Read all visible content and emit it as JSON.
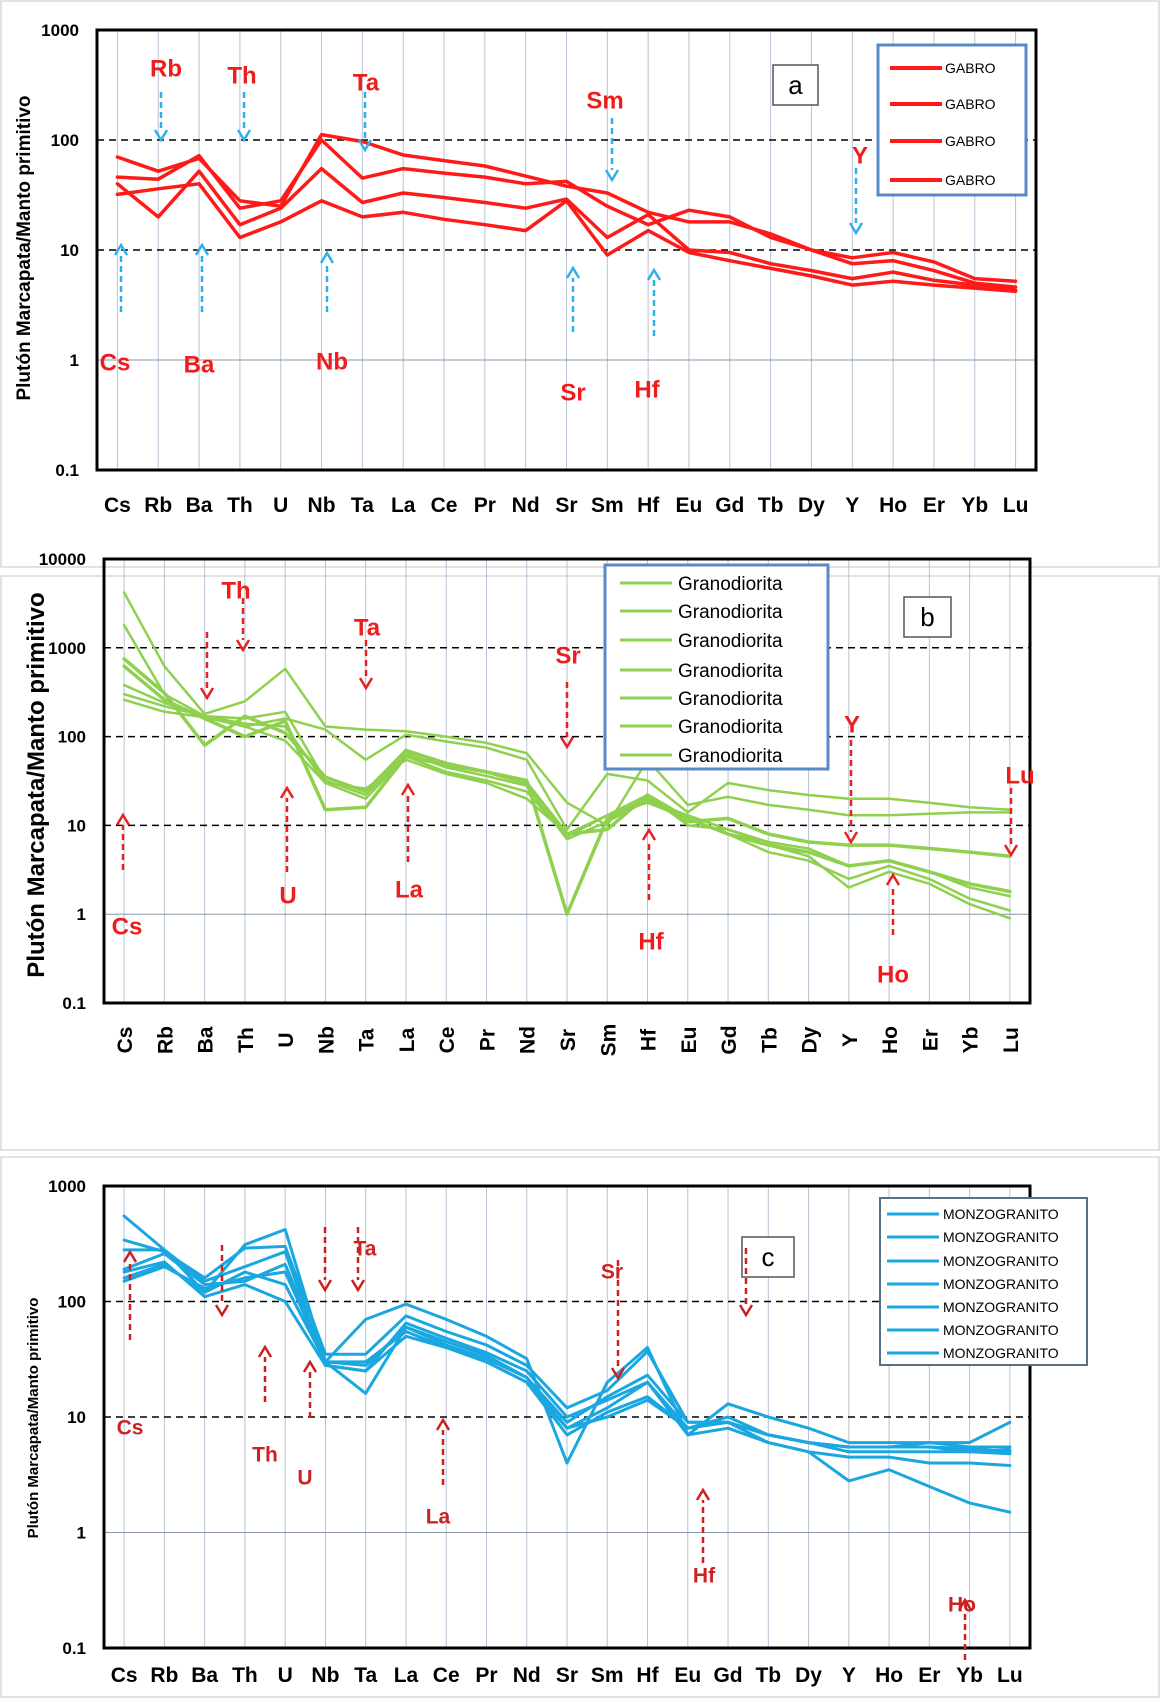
{
  "chart_data": [
    {
      "type": "line",
      "panel_letter": "a",
      "ylabel": "Plutón Marcapata/Manto primitivo",
      "y_scale": "log",
      "ylim": [
        0.1,
        1000
      ],
      "yticks": [
        "0.1",
        "1",
        "10",
        "100",
        "1000"
      ],
      "grid": {
        "solid": [
          1
        ],
        "dashed": [
          10,
          100
        ]
      },
      "categories": [
        "Cs",
        "Rb",
        "Ba",
        "Th",
        "U",
        "Nb",
        "Ta",
        "La",
        "Ce",
        "Pr",
        "Nd",
        "Sr",
        "Sm",
        "Hf",
        "Eu",
        "Gd",
        "Tb",
        "Dy",
        "Y",
        "Ho",
        "Er",
        "Yb",
        "Lu"
      ],
      "legend_position": "top-right",
      "line_color": "#ff1a1a",
      "arrow_color": "#2fb0ea",
      "label_color": "#ee1c1c",
      "series": [
        {
          "name": "GABRO",
          "values": [
            70,
            52,
            68,
            28,
            25,
            112,
            97,
            73,
            65,
            58,
            47,
            38,
            33,
            22,
            18,
            18,
            14,
            10,
            8.5,
            9.5,
            7.8,
            5.5,
            5.2
          ]
        },
        {
          "name": "GABRO",
          "values": [
            46,
            44,
            72,
            24,
            28,
            100,
            45,
            55,
            50,
            46,
            40,
            42,
            25,
            17,
            23,
            20,
            13,
            10,
            7.5,
            8,
            6.5,
            5,
            4.6
          ]
        },
        {
          "name": "GABRO",
          "values": [
            40,
            20,
            52,
            17,
            24,
            55,
            27,
            33,
            30,
            27,
            24,
            29,
            13,
            21,
            10,
            9.5,
            7.5,
            6.5,
            5.5,
            6.3,
            5.3,
            4.8,
            4.3
          ]
        },
        {
          "name": "GABRO",
          "values": [
            32,
            36,
            40,
            13,
            18,
            28,
            20,
            22,
            19,
            17,
            15,
            28,
            9,
            15,
            9.5,
            8,
            6.8,
            5.8,
            4.8,
            5.2,
            4.8,
            4.5,
            4.2
          ]
        }
      ],
      "annotations": [
        {
          "label": "Rb",
          "direction": "down"
        },
        {
          "label": "Th",
          "direction": "down"
        },
        {
          "label": "Ta",
          "direction": "down"
        },
        {
          "label": "Sm",
          "direction": "down"
        },
        {
          "label": "Y",
          "direction": "down"
        },
        {
          "label": "Cs",
          "direction": "up"
        },
        {
          "label": "Ba",
          "direction": "up"
        },
        {
          "label": "Nb",
          "direction": "up"
        },
        {
          "label": "Sr",
          "direction": "up"
        },
        {
          "label": "Hf",
          "direction": "up"
        }
      ]
    },
    {
      "type": "line",
      "panel_letter": "b",
      "ylabel": "Plutón Marcapata/Manto primitivo",
      "y_scale": "log",
      "ylim": [
        0.1,
        10000
      ],
      "yticks": [
        "0.1",
        "1",
        "10",
        "100",
        "1000",
        "10000"
      ],
      "grid": {
        "solid": [
          1
        ],
        "dashed": [
          10,
          100,
          1000
        ]
      },
      "categories": [
        "Cs",
        "Rb",
        "Ba",
        "Th",
        "U",
        "Nb",
        "Ta",
        "La",
        "Ce",
        "Pr",
        "Nd",
        "Sr",
        "Sm",
        "Hf",
        "Eu",
        "Gd",
        "Tb",
        "Dy",
        "Y",
        "Ho",
        "Er",
        "Yb",
        "Lu"
      ],
      "legend_position": "top-center",
      "line_color": "#8fd04e",
      "arrow_color": "#e82020",
      "label_color": "#ee1c1c",
      "series": [
        {
          "name": "Granodiorita",
          "values": [
            4200,
            620,
            180,
            250,
            580,
            130,
            120,
            115,
            100,
            85,
            65,
            18,
            10,
            55,
            17,
            21,
            17,
            15,
            13,
            13,
            13.5,
            14,
            14
          ]
        },
        {
          "name": "Granodiorita",
          "values": [
            1800,
            300,
            170,
            130,
            160,
            120,
            55,
            105,
            88,
            75,
            55,
            9,
            38,
            32,
            14,
            30,
            25,
            22,
            20,
            20,
            18,
            16,
            15
          ]
        },
        {
          "name": "Granodiorita",
          "values": [
            750,
            310,
            80,
            170,
            110,
            35,
            24,
            70,
            50,
            40,
            30,
            8,
            9,
            22,
            12,
            8,
            6,
            5,
            3.5,
            4,
            3,
            2.2,
            1.8
          ]
        },
        {
          "name": "Granodiorita",
          "values": [
            620,
            260,
            160,
            100,
            150,
            15,
            16,
            60,
            48,
            40,
            32,
            1,
            12,
            20,
            11,
            12,
            8,
            6.5,
            6,
            6,
            5.5,
            5,
            4.5
          ]
        },
        {
          "name": "Granodiorita",
          "values": [
            380,
            240,
            170,
            160,
            190,
            32,
            22,
            65,
            45,
            36,
            28,
            7,
            11,
            19,
            13,
            9,
            6,
            4.5,
            2,
            3,
            2.2,
            1.3,
            0.9
          ]
        },
        {
          "name": "Granodiorita",
          "values": [
            300,
            220,
            170,
            140,
            130,
            30,
            20,
            60,
            40,
            32,
            24,
            7.5,
            13,
            18,
            12,
            8,
            5,
            4,
            2.5,
            3.5,
            2.5,
            1.5,
            1.1
          ]
        },
        {
          "name": "Granodiorita",
          "values": [
            260,
            190,
            165,
            130,
            90,
            30,
            26,
            55,
            38,
            30,
            20,
            8,
            13,
            22,
            10,
            9,
            6.5,
            5.5,
            3.5,
            4,
            3,
            2,
            1.6
          ]
        }
      ],
      "annotations": [
        {
          "label": "Th",
          "direction": "down"
        },
        {
          "label": "Ta",
          "direction": "down"
        },
        {
          "label": "Sr",
          "direction": "down"
        },
        {
          "label": "Y",
          "direction": "down"
        },
        {
          "label": "Lu",
          "direction": "down"
        },
        {
          "label": "Cs",
          "direction": "up"
        },
        {
          "label": "U",
          "direction": "up"
        },
        {
          "label": "La",
          "direction": "up"
        },
        {
          "label": "Hf",
          "direction": "up"
        },
        {
          "label": "Ho",
          "direction": "up"
        }
      ]
    },
    {
      "type": "line",
      "panel_letter": "c",
      "ylabel": "Plutón Marcapata/Manto primitivo",
      "y_scale": "log",
      "ylim": [
        0.1,
        1000
      ],
      "yticks": [
        "0.1",
        "1",
        "10",
        "100",
        "1000"
      ],
      "grid": {
        "solid": [
          1
        ],
        "dashed": [
          10,
          100
        ]
      },
      "categories": [
        "Cs",
        "Rb",
        "Ba",
        "Th",
        "U",
        "Nb",
        "Ta",
        "La",
        "Ce",
        "Pr",
        "Nd",
        "Sr",
        "Sm",
        "Hf",
        "Eu",
        "Gd",
        "Tb",
        "Dy",
        "Y",
        "Ho",
        "Er",
        "Yb",
        "Lu"
      ],
      "legend_position": "top-right",
      "line_color": "#1aa7e0",
      "arrow_color": "#cc1f1f",
      "label_color": "#cc2222",
      "series": [
        {
          "name": "MONZOGRANITO",
          "values": [
            550,
            280,
            120,
            310,
            420,
            30,
            70,
            95,
            70,
            50,
            32,
            4,
            20,
            40,
            7,
            13,
            10,
            8,
            6,
            6,
            6,
            5.5,
            5.5
          ]
        },
        {
          "name": "MONZOGRANITO",
          "values": [
            340,
            270,
            160,
            290,
            300,
            35,
            35,
            75,
            55,
            42,
            28,
            12,
            17,
            37,
            9,
            9,
            7,
            6,
            5.5,
            5.5,
            5.5,
            5,
            5.2
          ]
        },
        {
          "name": "MONZOGRANITO",
          "values": [
            280,
            280,
            150,
            200,
            270,
            28,
            25,
            65,
            48,
            36,
            25,
            10,
            14,
            20,
            8,
            9,
            7,
            6,
            5.5,
            5.5,
            5.5,
            5.3,
            5
          ]
        },
        {
          "name": "MONZOGRANITO",
          "values": [
            190,
            260,
            140,
            150,
            210,
            30,
            28,
            60,
            45,
            34,
            22,
            9,
            15,
            23,
            9,
            9,
            7,
            6,
            5.5,
            5.5,
            6,
            6,
            9
          ]
        },
        {
          "name": "MONZOGRANITO",
          "values": [
            160,
            210,
            120,
            180,
            140,
            30,
            16,
            60,
            42,
            32,
            22,
            8,
            12,
            20,
            7,
            8,
            6,
            5,
            4.5,
            4.5,
            4,
            4,
            3.8
          ]
        },
        {
          "name": "MONZOGRANITO",
          "values": [
            180,
            220,
            110,
            140,
            100,
            28,
            25,
            50,
            40,
            30,
            20,
            7,
            11,
            15,
            8,
            9,
            6,
            5,
            2.8,
            3.5,
            2.5,
            1.8,
            1.5
          ]
        },
        {
          "name": "MONZOGRANITO",
          "values": [
            150,
            200,
            130,
            160,
            180,
            30,
            30,
            55,
            40,
            30,
            20,
            8,
            10,
            14,
            8,
            10,
            7,
            6,
            5,
            5,
            5,
            5,
            4.8
          ]
        }
      ],
      "annotations": [
        {
          "label": "Ta",
          "direction": "down"
        },
        {
          "label": "Sr",
          "direction": "down"
        },
        {
          "label": "Cs",
          "direction": "up"
        },
        {
          "label": "Th",
          "direction": "up"
        },
        {
          "label": "U",
          "direction": "up"
        },
        {
          "label": "La",
          "direction": "up"
        },
        {
          "label": "Hf",
          "direction": "up"
        },
        {
          "label": "Ho",
          "direction": "up"
        }
      ]
    }
  ]
}
